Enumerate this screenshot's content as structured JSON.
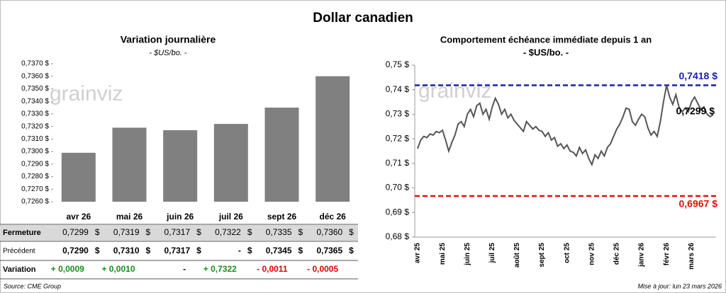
{
  "title": "Dollar canadien",
  "watermark": "grainviz",
  "chart_data": [
    {
      "type": "bar",
      "title": "Variation journalière",
      "subtitle": "- $US/bo. -",
      "categories": [
        "avr 26",
        "mai 26",
        "juin 26",
        "juil 26",
        "sept 26",
        "déc 26"
      ],
      "values": [
        0.7299,
        0.7319,
        0.7317,
        0.7322,
        0.7335,
        0.736
      ],
      "color": "#808080",
      "ylim": [
        0.726,
        0.737
      ],
      "yticks": [
        {
          "value": 0.726,
          "label": "0,7260 $"
        },
        {
          "value": 0.727,
          "label": "0,7270 $"
        },
        {
          "value": 0.728,
          "label": "0,7280 $"
        },
        {
          "value": 0.729,
          "label": "0,7290 $"
        },
        {
          "value": 0.73,
          "label": "0,7300 $"
        },
        {
          "value": 0.731,
          "label": "0,7310 $"
        },
        {
          "value": 0.732,
          "label": "0,7320 $"
        },
        {
          "value": 0.733,
          "label": "0,7330 $"
        },
        {
          "value": 0.734,
          "label": "0,7340 $"
        },
        {
          "value": 0.735,
          "label": "0,7350 $"
        },
        {
          "value": 0.736,
          "label": "0,7360 $"
        },
        {
          "value": 0.737,
          "label": "0,7370 $"
        }
      ]
    },
    {
      "type": "line",
      "title": "Comportement échéance immédiate depuis 1 an",
      "subtitle": "- $US/bo. -",
      "categories": [
        "avr 25",
        null,
        null,
        null,
        null,
        null,
        null,
        null,
        "mai 25",
        null,
        null,
        null,
        null,
        null,
        null,
        null,
        "juin 25",
        null,
        null,
        null,
        null,
        null,
        null,
        null,
        "juil 25",
        null,
        null,
        null,
        null,
        null,
        null,
        null,
        "août 25",
        null,
        null,
        null,
        null,
        null,
        null,
        null,
        "sept 25",
        null,
        null,
        null,
        null,
        null,
        null,
        null,
        "oct 25",
        null,
        null,
        null,
        null,
        null,
        null,
        null,
        "nov 25",
        null,
        null,
        null,
        null,
        null,
        null,
        null,
        "déc 25",
        null,
        null,
        null,
        null,
        null,
        null,
        null,
        "janv 26",
        null,
        null,
        null,
        null,
        null,
        null,
        null,
        "févr 26",
        null,
        null,
        null,
        null,
        null,
        null,
        null,
        "mars 26",
        null,
        null,
        null,
        null,
        null,
        null,
        null
      ],
      "series": [
        {
          "color": "#555555",
          "values": [
            0.716,
            0.7195,
            0.721,
            0.7205,
            0.722,
            0.7215,
            0.723,
            0.7225,
            0.7235,
            0.7195,
            0.715,
            0.7185,
            0.7215,
            0.726,
            0.727,
            0.725,
            0.73,
            0.732,
            0.729,
            0.7335,
            0.7345,
            0.73,
            0.732,
            0.728,
            0.733,
            0.7365,
            0.734,
            0.73,
            0.732,
            0.7285,
            0.73,
            0.7275,
            0.726,
            0.7245,
            0.723,
            0.727,
            0.7255,
            0.724,
            0.725,
            0.7235,
            0.723,
            0.721,
            0.7225,
            0.7195,
            0.7205,
            0.717,
            0.718,
            0.716,
            0.7175,
            0.715,
            0.7145,
            0.713,
            0.7165,
            0.714,
            0.7155,
            0.712,
            0.7095,
            0.7135,
            0.712,
            0.715,
            0.713,
            0.7165,
            0.718,
            0.721,
            0.724,
            0.726,
            0.729,
            0.7325,
            0.732,
            0.727,
            0.7255,
            0.728,
            0.73,
            0.729,
            0.7245,
            0.7215,
            0.723,
            0.721,
            0.727,
            0.735,
            0.7418,
            0.737,
            0.734,
            0.738,
            0.733,
            0.731,
            0.7325,
            0.731,
            0.735,
            0.737,
            0.7345,
            0.732,
            0.733,
            0.73,
            0.729,
            0.7299
          ]
        }
      ],
      "end_label": {
        "value": 0.7299,
        "label": "0,7299 $"
      },
      "reference_lines": {
        "values": [
          0.7418,
          0.6967
        ],
        "value_labels": [
          "0,7418 $",
          "0,6967 $"
        ],
        "colors": [
          "#1f1fa8",
          "#e01010"
        ]
      },
      "ylim": [
        0.68,
        0.75
      ],
      "yticks": [
        {
          "value": 0.68,
          "label": "0,68 $"
        },
        {
          "value": 0.69,
          "label": "0,69 $"
        },
        {
          "value": 0.7,
          "label": "0,70 $"
        },
        {
          "value": 0.71,
          "label": "0,71 $"
        },
        {
          "value": 0.72,
          "label": "0,72 $"
        },
        {
          "value": 0.73,
          "label": "0,73 $"
        },
        {
          "value": 0.74,
          "label": "0,74 $"
        },
        {
          "value": 0.75,
          "label": "0,75 $"
        }
      ]
    }
  ],
  "table": {
    "rows": [
      {
        "label": "Fermeture",
        "unit": "$",
        "cells": [
          "0,7299",
          "0,7319",
          "0,7317",
          "0,7322",
          "0,7335",
          "0,7360"
        ]
      },
      {
        "label": "Précédent",
        "unit": "$",
        "cells": [
          "0,7290",
          "0,7310",
          "0,7317",
          "-",
          "0,7345",
          "0,7365"
        ]
      },
      {
        "label": "Variation",
        "cells": [
          "+ 0,0009",
          "+ 0,0010",
          "-",
          "+ 0,7322",
          "- 0,0011",
          "- 0,0005"
        ]
      }
    ]
  },
  "footer": {
    "source": "Source: CME Group",
    "updated": "Mise à jour: lun 23 mars 2026"
  }
}
